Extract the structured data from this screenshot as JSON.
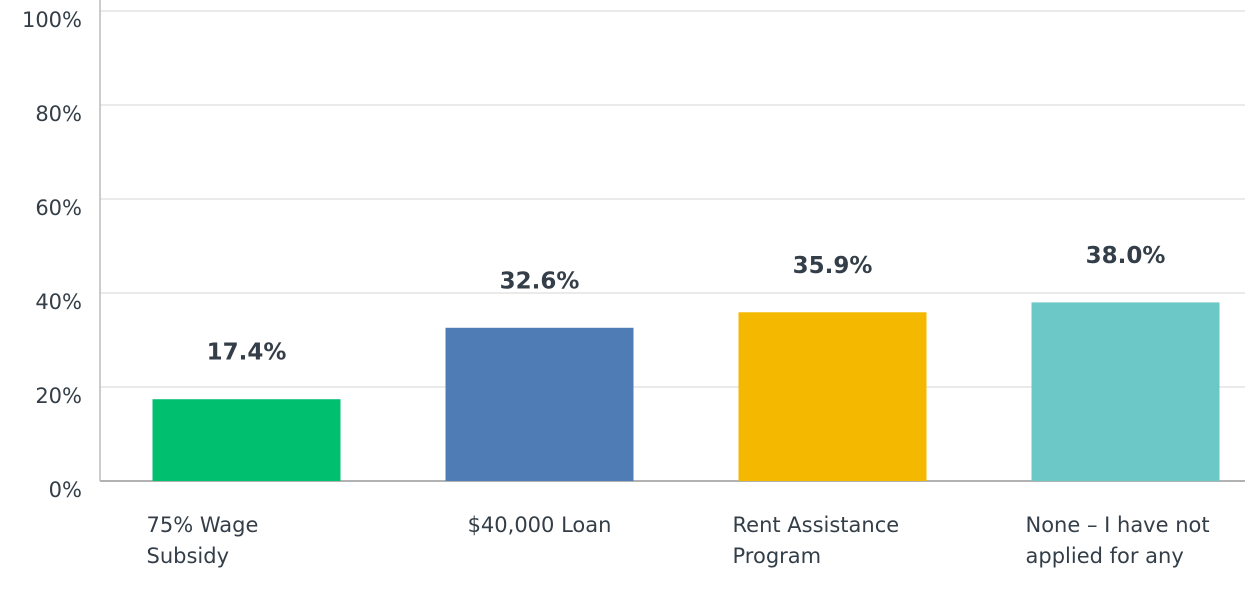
{
  "chart_data": {
    "type": "bar",
    "categories": [
      "75% Wage Subsidy",
      "$40,000 Loan",
      "Rent Assistance Program",
      "None – I have not applied for any"
    ],
    "values": [
      17.4,
      32.6,
      35.9,
      38.0
    ],
    "value_labels": [
      "17.4%",
      "32.6%",
      "35.9%",
      "38.0%"
    ],
    "colors": [
      "#00bf6f",
      "#507cb6",
      "#f5b800",
      "#6bc8c7"
    ],
    "ylim": [
      0,
      100
    ],
    "yticks": [
      {
        "value": 0,
        "label": "0%"
      },
      {
        "value": 20,
        "label": "20%"
      },
      {
        "value": 40,
        "label": "40%"
      },
      {
        "value": 60,
        "label": "60%"
      },
      {
        "value": 80,
        "label": "80%"
      },
      {
        "value": 100,
        "label": "100%"
      }
    ],
    "grid": true
  }
}
